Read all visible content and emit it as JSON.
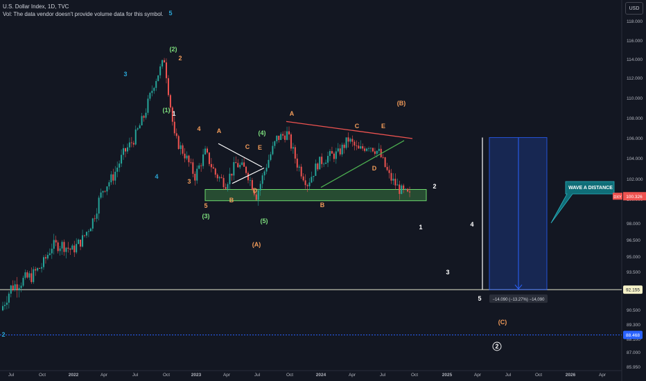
{
  "header": {
    "title": "U.S. Dollar Index, 1D, TVC",
    "volume_note": "Vol: The data vendor doesn't provide volume data for this symbol."
  },
  "unit_button": "USD",
  "colors": {
    "background": "#131722",
    "up": "#26a69a",
    "down": "#ef5350",
    "orange": "#f39c5a",
    "green": "#7ee07e",
    "cyan": "#2aa6d6",
    "red": "#ef5350",
    "blue": "#2962ff"
  },
  "chart_data": {
    "type": "line",
    "symbol": "DXY",
    "interval": "1D",
    "x": [
      "2021-06",
      "2021-07",
      "2021-08",
      "2021-09",
      "2021-10",
      "2021-11",
      "2021-12",
      "2022-01",
      "2022-02",
      "2022-03",
      "2022-04",
      "2022-05",
      "2022-06",
      "2022-07",
      "2022-08",
      "2022-09",
      "2022-10",
      "2022-11",
      "2022-12",
      "2023-01",
      "2023-02",
      "2023-03",
      "2023-04",
      "2023-05",
      "2023-06",
      "2023-07",
      "2023-08",
      "2023-09",
      "2023-10",
      "2023-11",
      "2023-12",
      "2024-01",
      "2024-02",
      "2024-03",
      "2024-04",
      "2024-05",
      "2024-06",
      "2024-07",
      "2024-08",
      "2024-09",
      "2024-10"
    ],
    "series": [
      {
        "values": [
          90.5,
          92.3,
          92.8,
          93.2,
          94.1,
          96.0,
          96.1,
          95.6,
          96.6,
          98.3,
          101.0,
          102.3,
          104.5,
          105.9,
          108.2,
          111.5,
          114.0,
          106.1,
          104.4,
          102.3,
          104.6,
          102.5,
          101.6,
          103.5,
          102.9,
          100.4,
          103.4,
          106.0,
          106.5,
          103.5,
          101.6,
          103.5,
          104.2,
          104.5,
          105.9,
          104.8,
          105.4,
          104.6,
          102.3,
          101.0,
          100.33
        ]
      }
    ],
    "x_tick_labels": [
      "Jul",
      "Oct",
      "2022",
      "Apr",
      "Jul",
      "Oct",
      "2023",
      "Apr",
      "Jul",
      "Oct",
      "2024",
      "Apr",
      "Jul",
      "Oct",
      "2025",
      "Apr",
      "Jul",
      "Oct",
      "2026",
      "Apr"
    ],
    "y_tick_labels": [
      "118.000",
      "116.000",
      "114.000",
      "112.000",
      "110.000",
      "108.000",
      "106.000",
      "104.000",
      "102.000",
      "100.000",
      "98.000",
      "96.500",
      "95.000",
      "93.500",
      "92.000",
      "90.500",
      "89.300",
      "88.100",
      "87.000",
      "85.950"
    ],
    "price_labels": {
      "current_symbol": "DXY",
      "current": "100.326",
      "support": "92.155",
      "low": "88.468"
    },
    "horizontal_lines": [
      92.155,
      88.468
    ],
    "measure_label": "−14.090 (−13.27%) −14,090",
    "callout": "WAVE A DISTANCE",
    "wave_labels": {
      "orange": [
        "2",
        "4",
        "3",
        "5",
        "A",
        "C",
        "E",
        "B",
        "D",
        "A",
        "C",
        "E",
        "B",
        "D",
        "(B)",
        "(A)",
        "(C)"
      ],
      "green": [
        "(2)",
        "(1)",
        "(4)",
        "(3)",
        "(5)"
      ],
      "cyan": [
        "5",
        "3",
        "4",
        "2"
      ],
      "white": [
        "1",
        "2",
        "4",
        "3",
        "5",
        "1",
        "2"
      ]
    },
    "grid": false,
    "legend": "none"
  }
}
